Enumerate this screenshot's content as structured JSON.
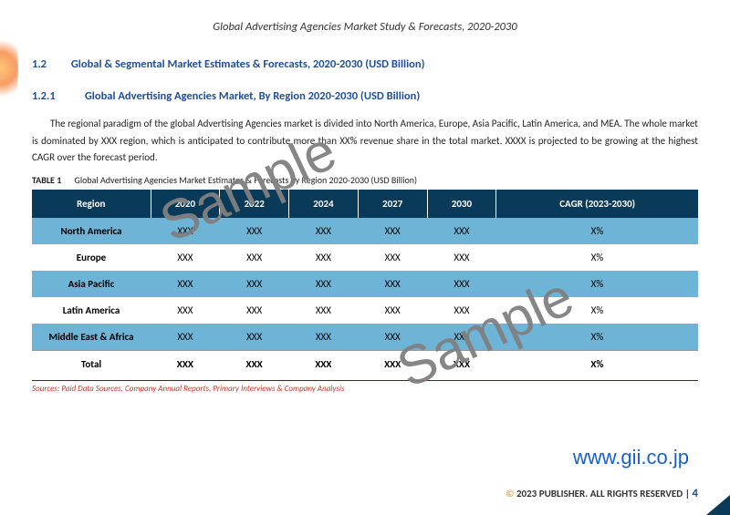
{
  "header": {
    "title": "Global Advertising Agencies Market Study & Forecasts, 2020-2030"
  },
  "section": {
    "num": "1.2",
    "title": "Global & Segmental Market Estimates & Forecasts, 2020-2030 (USD Billion)"
  },
  "subsection": {
    "num": "1.2.1",
    "title": "Global Advertising Agencies Market, By Region 2020-2030 (USD Billion)"
  },
  "paragraph": "The regional paradigm of the global Advertising Agencies market is divided into North America, Europe, Asia Pacific, Latin America, and MEA. The whole market is dominated by XXX region, which is anticipated to contribute more than XX% revenue share in the total market. XXXX is projected to be growing at the highest CAGR over the forecast period.",
  "table": {
    "label": "TABLE 1",
    "caption": "Global Advertising Agencies Market Estimates & Forecasts by Region 2020-2030 (USD Billion)",
    "columns": [
      "Region",
      "2020",
      "2022",
      "2024",
      "2027",
      "2030",
      "CAGR (2023-2030)"
    ],
    "rows": [
      {
        "cells": [
          "North America",
          "XXX",
          "XXX",
          "XXX",
          "XXX",
          "XXX",
          "X%"
        ],
        "alt": true
      },
      {
        "cells": [
          "Europe",
          "XXX",
          "XXX",
          "XXX",
          "XXX",
          "XXX",
          "X%"
        ],
        "alt": false
      },
      {
        "cells": [
          "Asia Pacific",
          "XXX",
          "XXX",
          "XXX",
          "XXX",
          "XXX",
          "X%"
        ],
        "alt": true
      },
      {
        "cells": [
          "Latin America",
          "XXX",
          "XXX",
          "XXX",
          "XXX",
          "XXX",
          "X%"
        ],
        "alt": false
      },
      {
        "cells": [
          "Middle East & Africa",
          "XXX",
          "XXX",
          "XXX",
          "XXX",
          "XXX",
          "X%"
        ],
        "alt": true
      },
      {
        "cells": [
          "Total",
          "XXX",
          "XXX",
          "XXX",
          "XXX",
          "XXX",
          "X%"
        ],
        "alt": false,
        "total": true
      }
    ],
    "sources": "Sources: Paid Data Sources, Company Annual Reports, Primary Interviews & Company Analysis"
  },
  "url": "www.gii.co.jp",
  "footer": {
    "copyright_symbol": "©",
    "year_publisher": "2023 PUBLISHER. ALL RIGHTS RESERVED",
    "sep": " | ",
    "page": "4"
  },
  "watermark": "Sample",
  "colors": {
    "brand_blue": "#1f4e9c",
    "table_header": "#0a3a5a",
    "row_alt": "#6db4d6",
    "source_red": "#c0392b",
    "link_blue": "#1a5fd0",
    "copyright": "#e8a33d"
  }
}
